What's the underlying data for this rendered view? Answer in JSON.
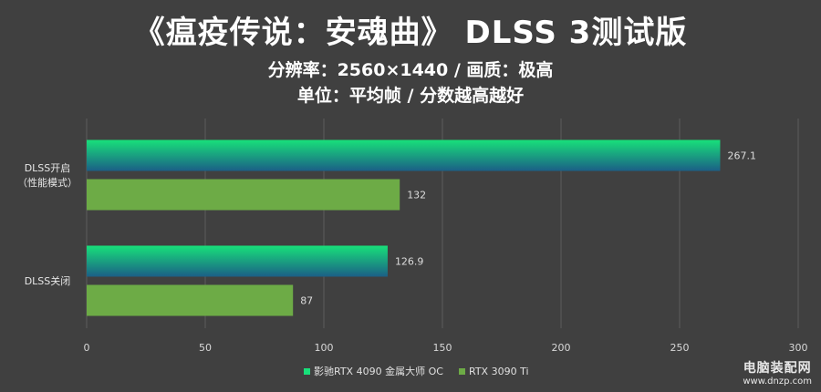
{
  "title": "《瘟疫传说：安魂曲》 DLSS 3测试版",
  "subtitle_lines": [
    "分辨率：2560×1440 / 画质：极高",
    "单位：平均帧 / 分数越高越好"
  ],
  "watermark": {
    "main": "电脑装配网",
    "url": "www.dnzp.com"
  },
  "chart_data": {
    "type": "bar",
    "orientation": "horizontal",
    "categories": [
      "DLSS开启\n（性能模式）",
      "DLSS关闭"
    ],
    "series": [
      {
        "name": "影驰RTX 4090 金属大师 OC",
        "values": [
          267.1,
          126.9
        ],
        "color_top": "#18e07a",
        "color_bottom": "#1b5f86"
      },
      {
        "name": "RTX 3090 Ti",
        "values": [
          132,
          87
        ],
        "color": "#6dab46"
      }
    ],
    "data_labels": [
      "267.1",
      "126.9",
      "132",
      "87"
    ],
    "xlim": [
      0,
      300
    ],
    "x_ticks": [
      0,
      50,
      100,
      150,
      200,
      250,
      300
    ],
    "grid": "vertical",
    "legend": "bottom-center"
  }
}
